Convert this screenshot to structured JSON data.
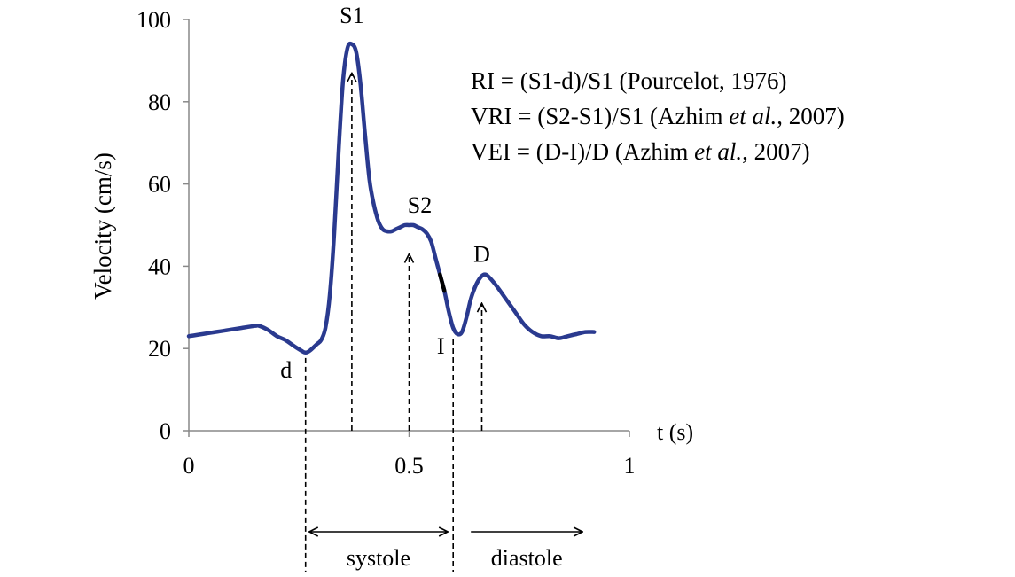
{
  "chart_data": {
    "type": "line",
    "title": "",
    "xlabel": "t (s)",
    "ylabel": "Velocity (cm/s)",
    "xlim": [
      0,
      1
    ],
    "ylim": [
      0,
      100
    ],
    "x_ticks": [
      0,
      0.5,
      1
    ],
    "x_tick_labels": [
      "0",
      "0.5",
      "1"
    ],
    "y_ticks": [
      0,
      20,
      40,
      60,
      80,
      100
    ],
    "y_tick_labels": [
      "0",
      "20",
      "40",
      "60",
      "80",
      "100"
    ],
    "grid": false,
    "series": [
      {
        "color": "#2a3a8f",
        "highlight_segment": {
          "x_from": 0.565,
          "x_to": 0.585,
          "color": "#000000"
        },
        "x": [
          0.0,
          0.03,
          0.06,
          0.09,
          0.12,
          0.15,
          0.16,
          0.18,
          0.2,
          0.22,
          0.24,
          0.255,
          0.265,
          0.275,
          0.29,
          0.3,
          0.31,
          0.32,
          0.33,
          0.34,
          0.35,
          0.36,
          0.37,
          0.38,
          0.39,
          0.4,
          0.41,
          0.42,
          0.43,
          0.44,
          0.45,
          0.46,
          0.47,
          0.48,
          0.49,
          0.5,
          0.51,
          0.52,
          0.53,
          0.54,
          0.55,
          0.56,
          0.57,
          0.58,
          0.59,
          0.6,
          0.61,
          0.62,
          0.63,
          0.64,
          0.65,
          0.66,
          0.67,
          0.68,
          0.7,
          0.72,
          0.74,
          0.76,
          0.78,
          0.8,
          0.82,
          0.84,
          0.86,
          0.88,
          0.9,
          0.92
        ],
        "y": [
          23,
          23.5,
          24,
          24.5,
          25,
          25.5,
          25.5,
          24.5,
          23,
          22,
          20.5,
          19.5,
          19,
          19.5,
          21,
          22,
          25,
          33,
          48,
          68,
          85,
          93,
          94,
          92,
          84,
          72,
          61,
          55,
          51,
          49,
          48.5,
          48.5,
          49,
          49.5,
          50,
          50,
          50,
          49.5,
          49,
          48,
          46,
          42,
          38,
          34,
          29,
          25,
          23.5,
          24,
          27.5,
          32,
          35,
          37,
          38,
          37.5,
          35,
          32,
          29,
          26,
          24,
          23,
          23,
          22.5,
          23,
          23.5,
          24,
          24
        ]
      }
    ],
    "annotations": [
      {
        "label": "S1",
        "x": 0.37,
        "y": 94,
        "arrow_from_y": 0,
        "arrow_to_y": 87
      },
      {
        "label": "S2",
        "x": 0.5,
        "y": 50,
        "arrow_from_y": 0,
        "arrow_to_y": 43
      },
      {
        "label": "D",
        "x": 0.665,
        "y": 38,
        "arrow_from_y": 0,
        "arrow_to_y": 31
      },
      {
        "label": "d",
        "x": 0.265,
        "y": 19
      },
      {
        "label": "I",
        "x": 0.6,
        "y": 23.5
      }
    ],
    "phases": [
      {
        "label": "systole",
        "x_from": 0.265,
        "x_to": 0.6
      },
      {
        "label": "diastole",
        "x_from": 0.6,
        "x_to": 0.95
      }
    ],
    "formulas": [
      {
        "name": "RI",
        "parts": [
          {
            "text": "RI = (S1-d)/S1 (Pourcelot, 1976)",
            "italic": false
          }
        ]
      },
      {
        "name": "VRI",
        "parts": [
          {
            "text": "VRI = (S2-S1)/S1 (Azhim ",
            "italic": false
          },
          {
            "text": "et al.",
            "italic": true
          },
          {
            "text": ", 2007)",
            "italic": false
          }
        ]
      },
      {
        "name": "VEI",
        "parts": [
          {
            "text": "VEI = (D-I)/D (Azhim ",
            "italic": false
          },
          {
            "text": "et al.",
            "italic": true
          },
          {
            "text": ", 2007)",
            "italic": false
          }
        ]
      }
    ]
  }
}
